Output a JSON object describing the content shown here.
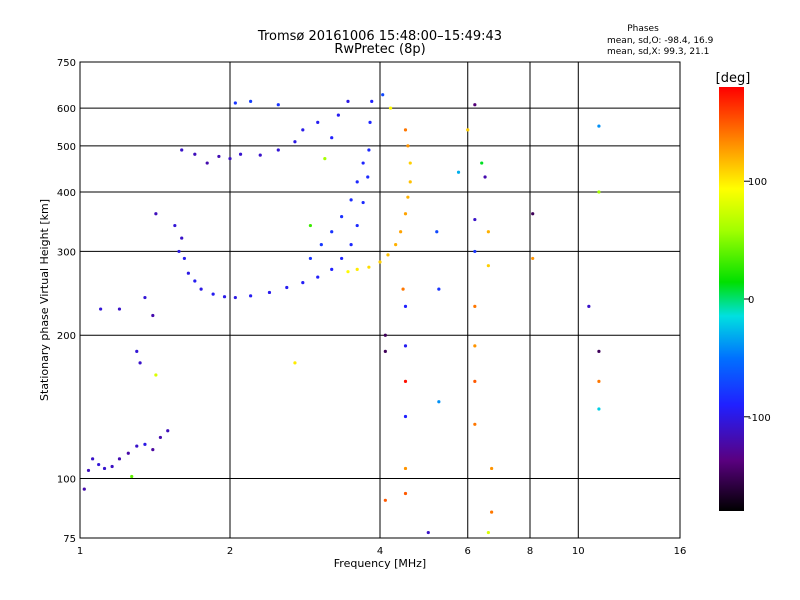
{
  "chart_data": {
    "type": "scatter",
    "title": "Tromsø 20161006 15:48:00–15:49:43",
    "subtitle": "RwPretec (8p)",
    "xlabel": "Frequency [MHz]",
    "ylabel": "Stationary phase Virtual Height [km]",
    "x_scale": "log",
    "y_scale": "log",
    "xlim": [
      1,
      16
    ],
    "ylim": [
      75,
      750
    ],
    "x_ticks": [
      {
        "value": 1,
        "label": "1"
      },
      {
        "value": 2,
        "label": "2"
      },
      {
        "value": 4,
        "label": "4"
      },
      {
        "value": 6,
        "label": "6"
      },
      {
        "value": 8,
        "label": "8"
      },
      {
        "value": 10,
        "label": "10"
      },
      {
        "value": 16,
        "label": "16"
      }
    ],
    "y_ticks": [
      {
        "value": 75,
        "label": "75"
      },
      {
        "value": 100,
        "label": "100"
      },
      {
        "value": 200,
        "label": "200"
      },
      {
        "value": 300,
        "label": "300"
      },
      {
        "value": 400,
        "label": "400"
      },
      {
        "value": 500,
        "label": "500"
      },
      {
        "value": 600,
        "label": "600"
      },
      {
        "value": 750,
        "label": "750"
      }
    ],
    "x_gridlines": [
      2,
      4,
      6,
      8,
      10
    ],
    "y_gridlines": [
      100,
      200,
      300,
      400,
      500,
      600
    ],
    "stats": {
      "heading": "Phases",
      "line1": "mean, sd,O: -98.4, 16.9",
      "line2": "mean, sd,X:  99.3, 21.1"
    },
    "colorbar": {
      "label": "[deg]",
      "vmin": -180,
      "vmax": 180,
      "ticks": [
        {
          "value": 100,
          "label": "100"
        },
        {
          "value": 0,
          "label": "0"
        },
        {
          "value": -100,
          "label": "-100"
        }
      ]
    },
    "points": [
      {
        "x": 1.02,
        "y": 95,
        "phase": -120
      },
      {
        "x": 1.04,
        "y": 104,
        "phase": -115
      },
      {
        "x": 1.06,
        "y": 110,
        "phase": -110
      },
      {
        "x": 1.09,
        "y": 107,
        "phase": -105
      },
      {
        "x": 1.12,
        "y": 105,
        "phase": -108
      },
      {
        "x": 1.16,
        "y": 106,
        "phase": -112
      },
      {
        "x": 1.2,
        "y": 110,
        "phase": -118
      },
      {
        "x": 1.25,
        "y": 113,
        "phase": -122
      },
      {
        "x": 1.3,
        "y": 117,
        "phase": -110
      },
      {
        "x": 1.35,
        "y": 118,
        "phase": -100
      },
      {
        "x": 1.4,
        "y": 115,
        "phase": -125
      },
      {
        "x": 1.45,
        "y": 122,
        "phase": -120
      },
      {
        "x": 1.5,
        "y": 126,
        "phase": -115
      },
      {
        "x": 1.27,
        "y": 101,
        "phase": 40
      },
      {
        "x": 1.3,
        "y": 185,
        "phase": -105
      },
      {
        "x": 1.32,
        "y": 175,
        "phase": -110
      },
      {
        "x": 1.42,
        "y": 165,
        "phase": 80
      },
      {
        "x": 1.1,
        "y": 227,
        "phase": -105
      },
      {
        "x": 1.2,
        "y": 227,
        "phase": -110
      },
      {
        "x": 1.35,
        "y": 240,
        "phase": -105
      },
      {
        "x": 1.4,
        "y": 220,
        "phase": -120
      },
      {
        "x": 1.42,
        "y": 360,
        "phase": -115
      },
      {
        "x": 1.55,
        "y": 340,
        "phase": -105
      },
      {
        "x": 1.58,
        "y": 300,
        "phase": -100
      },
      {
        "x": 1.6,
        "y": 320,
        "phase": -110
      },
      {
        "x": 1.62,
        "y": 290,
        "phase": -95
      },
      {
        "x": 1.65,
        "y": 270,
        "phase": -100
      },
      {
        "x": 1.7,
        "y": 260,
        "phase": -95
      },
      {
        "x": 1.75,
        "y": 250,
        "phase": -100
      },
      {
        "x": 1.85,
        "y": 244,
        "phase": -95
      },
      {
        "x": 1.95,
        "y": 241,
        "phase": -98
      },
      {
        "x": 2.05,
        "y": 240,
        "phase": -100
      },
      {
        "x": 2.2,
        "y": 242,
        "phase": -95
      },
      {
        "x": 2.4,
        "y": 246,
        "phase": -97
      },
      {
        "x": 2.6,
        "y": 252,
        "phase": -95
      },
      {
        "x": 2.8,
        "y": 258,
        "phase": -93
      },
      {
        "x": 3.0,
        "y": 265,
        "phase": -92
      },
      {
        "x": 3.2,
        "y": 275,
        "phase": -90
      },
      {
        "x": 3.35,
        "y": 290,
        "phase": -88
      },
      {
        "x": 3.5,
        "y": 310,
        "phase": -86
      },
      {
        "x": 3.6,
        "y": 340,
        "phase": -85
      },
      {
        "x": 3.7,
        "y": 380,
        "phase": -85
      },
      {
        "x": 3.78,
        "y": 430,
        "phase": -85
      },
      {
        "x": 3.8,
        "y": 490,
        "phase": -85
      },
      {
        "x": 3.82,
        "y": 560,
        "phase": -87
      },
      {
        "x": 3.85,
        "y": 620,
        "phase": -90
      },
      {
        "x": 2.9,
        "y": 290,
        "phase": -80
      },
      {
        "x": 3.05,
        "y": 310,
        "phase": -78
      },
      {
        "x": 3.2,
        "y": 330,
        "phase": -80
      },
      {
        "x": 3.35,
        "y": 355,
        "phase": -82
      },
      {
        "x": 3.5,
        "y": 385,
        "phase": -84
      },
      {
        "x": 3.6,
        "y": 420,
        "phase": -86
      },
      {
        "x": 3.7,
        "y": 460,
        "phase": -88
      },
      {
        "x": 3.45,
        "y": 272,
        "phase": 95
      },
      {
        "x": 3.6,
        "y": 275,
        "phase": 100
      },
      {
        "x": 3.8,
        "y": 278,
        "phase": 105
      },
      {
        "x": 4.0,
        "y": 285,
        "phase": 110
      },
      {
        "x": 4.15,
        "y": 295,
        "phase": 115
      },
      {
        "x": 4.3,
        "y": 310,
        "phase": 120
      },
      {
        "x": 4.4,
        "y": 330,
        "phase": 125
      },
      {
        "x": 4.5,
        "y": 360,
        "phase": 125
      },
      {
        "x": 4.55,
        "y": 390,
        "phase": 120
      },
      {
        "x": 4.6,
        "y": 420,
        "phase": 115
      },
      {
        "x": 4.6,
        "y": 460,
        "phase": 110
      },
      {
        "x": 4.55,
        "y": 500,
        "phase": 130
      },
      {
        "x": 4.5,
        "y": 540,
        "phase": 140
      },
      {
        "x": 4.2,
        "y": 600,
        "phase": 95
      },
      {
        "x": 4.05,
        "y": 640,
        "phase": -70
      },
      {
        "x": 1.6,
        "y": 490,
        "phase": -110
      },
      {
        "x": 1.7,
        "y": 480,
        "phase": -115
      },
      {
        "x": 1.8,
        "y": 460,
        "phase": -120
      },
      {
        "x": 1.9,
        "y": 475,
        "phase": -118
      },
      {
        "x": 2.0,
        "y": 470,
        "phase": -112
      },
      {
        "x": 2.1,
        "y": 480,
        "phase": -108
      },
      {
        "x": 2.3,
        "y": 478,
        "phase": -110
      },
      {
        "x": 2.5,
        "y": 490,
        "phase": -105
      },
      {
        "x": 2.7,
        "y": 510,
        "phase": -100
      },
      {
        "x": 2.8,
        "y": 540,
        "phase": -98
      },
      {
        "x": 3.0,
        "y": 560,
        "phase": -95
      },
      {
        "x": 3.1,
        "y": 470,
        "phase": 60
      },
      {
        "x": 3.2,
        "y": 520,
        "phase": -90
      },
      {
        "x": 3.3,
        "y": 580,
        "phase": -95
      },
      {
        "x": 3.45,
        "y": 620,
        "phase": -100
      },
      {
        "x": 2.05,
        "y": 615,
        "phase": -80
      },
      {
        "x": 2.2,
        "y": 620,
        "phase": -75
      },
      {
        "x": 2.5,
        "y": 610,
        "phase": -80
      },
      {
        "x": 2.9,
        "y": 340,
        "phase": 30
      },
      {
        "x": 2.7,
        "y": 175,
        "phase": 100
      },
      {
        "x": 4.1,
        "y": 200,
        "phase": -150
      },
      {
        "x": 4.1,
        "y": 185,
        "phase": -150
      },
      {
        "x": 4.1,
        "y": 90,
        "phase": 150
      },
      {
        "x": 4.45,
        "y": 250,
        "phase": 140
      },
      {
        "x": 4.5,
        "y": 230,
        "phase": -90
      },
      {
        "x": 4.5,
        "y": 190,
        "phase": -95
      },
      {
        "x": 4.5,
        "y": 160,
        "phase": 175
      },
      {
        "x": 4.5,
        "y": 135,
        "phase": -90
      },
      {
        "x": 4.5,
        "y": 105,
        "phase": 130
      },
      {
        "x": 4.5,
        "y": 93,
        "phase": 150
      },
      {
        "x": 5.25,
        "y": 250,
        "phase": -80
      },
      {
        "x": 5.25,
        "y": 145,
        "phase": -40
      },
      {
        "x": 5.2,
        "y": 330,
        "phase": -70
      },
      {
        "x": 5.75,
        "y": 440,
        "phase": -30
      },
      {
        "x": 6.0,
        "y": 540,
        "phase": 110
      },
      {
        "x": 6.2,
        "y": 610,
        "phase": -140
      },
      {
        "x": 6.2,
        "y": 350,
        "phase": -110
      },
      {
        "x": 6.2,
        "y": 300,
        "phase": -80
      },
      {
        "x": 6.2,
        "y": 230,
        "phase": 140
      },
      {
        "x": 6.2,
        "y": 190,
        "phase": 130
      },
      {
        "x": 6.2,
        "y": 160,
        "phase": 150
      },
      {
        "x": 6.2,
        "y": 130,
        "phase": 140
      },
      {
        "x": 6.4,
        "y": 460,
        "phase": 10
      },
      {
        "x": 6.5,
        "y": 430,
        "phase": -120
      },
      {
        "x": 6.6,
        "y": 280,
        "phase": 110
      },
      {
        "x": 6.7,
        "y": 105,
        "phase": 130
      },
      {
        "x": 6.7,
        "y": 85,
        "phase": 140
      },
      {
        "x": 6.6,
        "y": 330,
        "phase": 120
      },
      {
        "x": 8.1,
        "y": 360,
        "phase": -150
      },
      {
        "x": 8.1,
        "y": 290,
        "phase": 130
      },
      {
        "x": 10.5,
        "y": 230,
        "phase": -110
      },
      {
        "x": 11.0,
        "y": 550,
        "phase": -40
      },
      {
        "x": 11.0,
        "y": 400,
        "phase": 60
      },
      {
        "x": 11.0,
        "y": 185,
        "phase": -150
      },
      {
        "x": 11.0,
        "y": 160,
        "phase": 140
      },
      {
        "x": 11.0,
        "y": 140,
        "phase": -20
      },
      {
        "x": 5.0,
        "y": 77,
        "phase": -110
      },
      {
        "x": 6.6,
        "y": 77,
        "phase": 80
      }
    ]
  }
}
